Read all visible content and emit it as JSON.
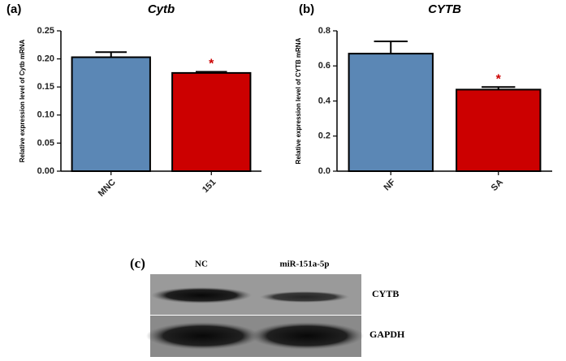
{
  "chart_data": [
    {
      "type": "bar",
      "panel": "(a)",
      "title": "Cytb",
      "y_label": "Relative expression level of Cytb mRNA",
      "categories": [
        "MNC",
        "151"
      ],
      "series": [
        {
          "colors": [
            "#5b87b5",
            "#cc0000"
          ],
          "values": [
            0.203,
            0.175
          ],
          "errors": [
            0.009,
            0.002
          ]
        }
      ],
      "annotations": [
        {
          "text": "*",
          "x": "151"
        }
      ],
      "ylim": [
        0,
        0.25
      ],
      "yticks": [
        {
          "value": 0,
          "label": "0.00"
        },
        0.05,
        {
          "value": 0.1,
          "label": "0.10"
        },
        0.15,
        {
          "value": 0.2,
          "label": "0.20"
        },
        0.25
      ]
    },
    {
      "type": "bar",
      "panel": "(b)",
      "title": "CYTB",
      "y_label": "Relative expression level of CYTB mRNA",
      "categories": [
        "NF",
        "SA"
      ],
      "series": [
        {
          "colors": [
            "#5b87b5",
            "#cc0000"
          ],
          "values": [
            0.67,
            0.465
          ],
          "errors": [
            0.07,
            0.015
          ]
        }
      ],
      "annotations": [
        {
          "text": "*",
          "x": "SA"
        }
      ],
      "ylim": [
        0,
        0.8
      ],
      "yticks": [
        {
          "value": 0,
          "label": "0.0"
        },
        0.2,
        0.4,
        0.6,
        0.8
      ]
    }
  ],
  "blot": {
    "panel": "(c)",
    "lanes": [
      "NC",
      "miR-151a-5p"
    ],
    "bands": [
      "CYTB",
      "GAPDH"
    ]
  }
}
